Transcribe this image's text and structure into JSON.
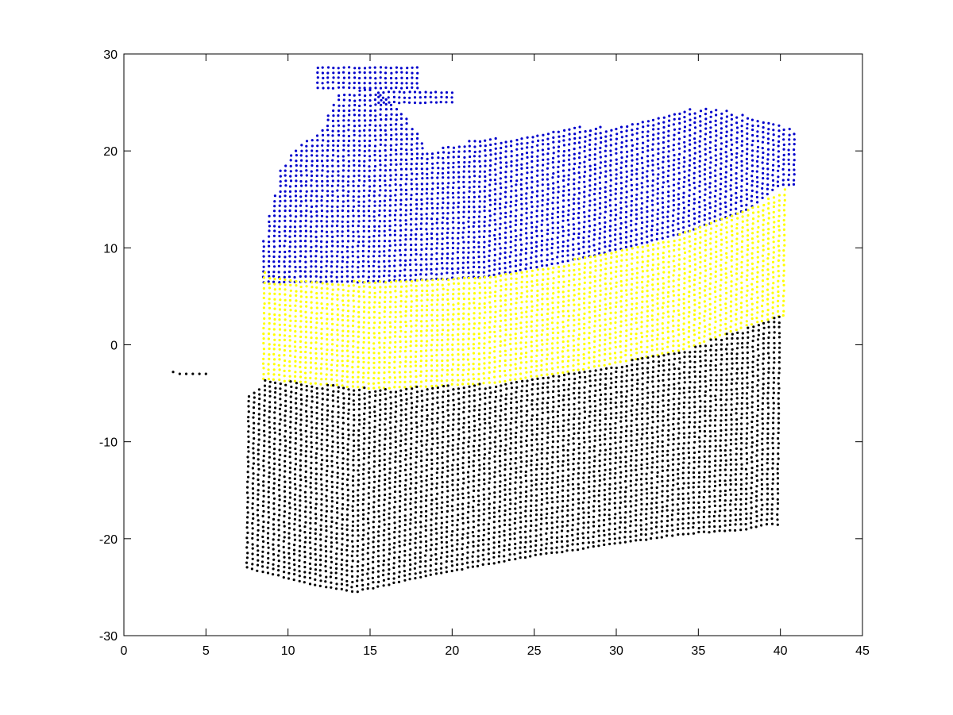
{
  "chart_data": {
    "type": "scatter",
    "title": "",
    "xlabel": "",
    "ylabel": "",
    "xlim": [
      0,
      45
    ],
    "ylim": [
      -30,
      30
    ],
    "x_ticks": [
      0,
      5,
      10,
      15,
      20,
      25,
      30,
      35,
      40,
      45
    ],
    "y_ticks": [
      -30,
      -20,
      -10,
      0,
      10,
      20,
      30
    ],
    "x_tick_labels": [
      "0",
      "5",
      "10",
      "15",
      "20",
      "25",
      "30",
      "35",
      "40",
      "45"
    ],
    "y_tick_labels": [
      "-30",
      "-20",
      "-10",
      "0",
      "10",
      "20",
      "30"
    ],
    "grid": false,
    "legend": "none",
    "marker": "point",
    "series": [
      {
        "color": "#0000cc",
        "region": {
          "x_range": [
            8.5,
            41
          ],
          "bottom_edge": [
            [
              8.5,
              6.5
            ],
            [
              15,
              6.5
            ],
            [
              22,
              7.0
            ],
            [
              28,
              9.0
            ],
            [
              34,
              11.5
            ],
            [
              38,
              14.0
            ],
            [
              40,
              16.5
            ]
          ],
          "top_edge": [
            [
              8.5,
              11.0
            ],
            [
              9.5,
              18.5
            ],
            [
              11,
              21.0
            ],
            [
              12,
              22.5
            ],
            [
              13,
              26.0
            ],
            [
              15,
              26.5
            ],
            [
              17,
              24.0
            ],
            [
              18.5,
              20.0
            ],
            [
              21,
              21.0
            ],
            [
              24,
              21.5
            ],
            [
              27,
              22.5
            ],
            [
              30,
              22.5
            ],
            [
              33,
              24.0
            ],
            [
              35,
              24.5
            ],
            [
              37,
              24.0
            ],
            [
              39,
              23.0
            ],
            [
              41,
              22.0
            ]
          ],
          "extra_clusters": [
            {
              "x_range": [
                11.8,
                18
              ],
              "y_range": [
                26.5,
                28.8
              ]
            },
            {
              "x_range": [
                15.5,
                20
              ],
              "y_range": [
                25.0,
                26.5
              ]
            }
          ]
        }
      },
      {
        "color": "#ffff00",
        "region": {
          "x_range": [
            8.5,
            40.5
          ],
          "bottom_edge": [
            [
              8.5,
              -3.5
            ],
            [
              15,
              -4.5
            ],
            [
              22,
              -4.0
            ],
            [
              28,
              -2.5
            ],
            [
              34,
              -0.5
            ],
            [
              38,
              2.0
            ],
            [
              40,
              3.0
            ]
          ],
          "top_edge": [
            [
              8.5,
              7.5
            ],
            [
              9.5,
              7.0
            ],
            [
              15,
              6.5
            ],
            [
              22,
              7.0
            ],
            [
              28,
              9.0
            ],
            [
              34,
              11.5
            ],
            [
              38,
              14.0
            ],
            [
              40.5,
              16.5
            ]
          ]
        }
      },
      {
        "color": "#000000",
        "region": {
          "x_range": [
            7.5,
            40
          ],
          "bottom_edge": [
            [
              7.5,
              -23.0
            ],
            [
              11,
              -24.5
            ],
            [
              14,
              -25.5
            ],
            [
              18,
              -24.0
            ],
            [
              24,
              -22.0
            ],
            [
              30,
              -20.5
            ],
            [
              34,
              -19.5
            ],
            [
              38,
              -19.0
            ],
            [
              39,
              -18.5
            ]
          ],
          "top_edge": [
            [
              7.5,
              -5.0
            ],
            [
              8.5,
              -3.5
            ],
            [
              15,
              -4.5
            ],
            [
              22,
              -4.0
            ],
            [
              28,
              -2.5
            ],
            [
              34,
              -0.5
            ],
            [
              38,
              2.0
            ],
            [
              39.5,
              3.0
            ]
          ]
        },
        "extra_points": [
          [
            3.0,
            -2.8
          ],
          [
            3.4,
            -3.0
          ],
          [
            3.8,
            -3.0
          ],
          [
            4.2,
            -3.0
          ],
          [
            4.6,
            -3.0
          ],
          [
            5.0,
            -3.0
          ]
        ]
      }
    ]
  }
}
